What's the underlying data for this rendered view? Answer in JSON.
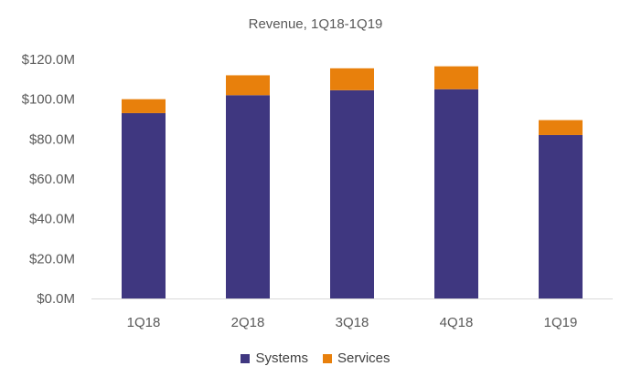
{
  "chart_data": {
    "type": "bar",
    "stacked": true,
    "title": "Revenue, 1Q18-1Q19",
    "xlabel": "",
    "ylabel": "",
    "categories": [
      "1Q18",
      "2Q18",
      "3Q18",
      "4Q18",
      "1Q19"
    ],
    "series": [
      {
        "name": "Systems",
        "color": "#3F3780",
        "values": [
          93.0,
          102.0,
          104.5,
          105.0,
          82.0
        ]
      },
      {
        "name": "Services",
        "color": "#E8800C",
        "values": [
          7.0,
          10.0,
          11.0,
          11.5,
          7.5
        ]
      }
    ],
    "ylim": [
      0,
      120
    ],
    "yticks": [
      0,
      20,
      40,
      60,
      80,
      100,
      120
    ],
    "ytick_labels": [
      "$0.0M",
      "$20.0M",
      "$40.0M",
      "$60.0M",
      "$80.0M",
      "$100.0M",
      "$120.0M"
    ],
    "grid": false,
    "legend_position": "bottom"
  }
}
